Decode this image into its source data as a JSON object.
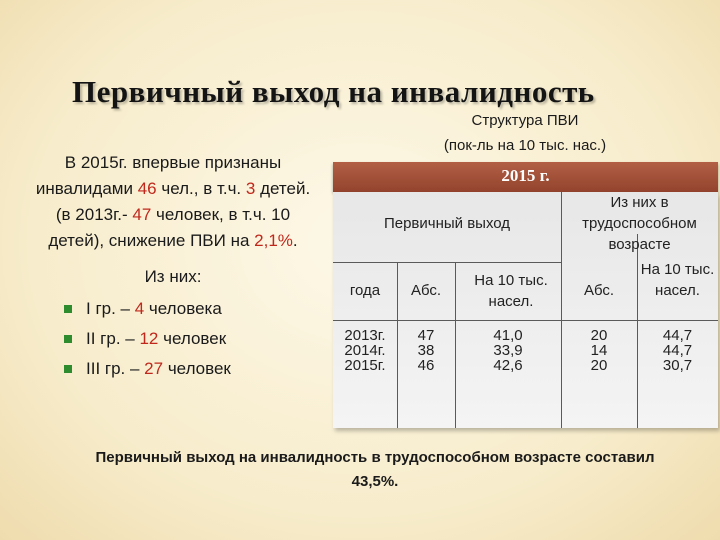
{
  "title": "Первичный выход  на инвалидность",
  "structure": {
    "line1": "Структура ПВИ",
    "line2": "(пок-ль на 10 тыс. нас.)"
  },
  "left": {
    "p1_a": "В 2015г. впервые признаны инвалидами ",
    "p1_n1": "46",
    "p1_b": " чел., в т.ч. ",
    "p1_n2": "3",
    "p1_c": " детей. (в 2013г.- ",
    "p1_n3": "47",
    "p1_d": " человек, в т.ч. 10 детей), снижение ПВИ на ",
    "p1_n4": "2,1%",
    "p1_e": ".",
    "sub": "Из них:",
    "bullets": [
      {
        "a": "I гр. – ",
        "n": "4",
        "b": " человека"
      },
      {
        "a": "II гр. – ",
        "n": "12",
        "b": " человек"
      },
      {
        "a": "III гр. – ",
        "n": "27",
        "b": " человек"
      }
    ]
  },
  "table": {
    "year_header": "2015 г.",
    "primary_header": "Первичный выход",
    "working_header": "Из них в трудоспособном возрасте",
    "col_year": "года",
    "col_abs": "Абс.",
    "col_per10": "На 10 тыс. насел.",
    "col_abs2": "Абс.",
    "col_per10_2": "На 10 тыс. насел.",
    "years": "2013г.\n2014г.\n2015г.",
    "abs": "47\n38\n46",
    "per10": "41,0\n33,9\n42,6",
    "abs2": "20\n14\n20",
    "per10_2": "44,7\n44,7\n30,7"
  },
  "footer": "Первичный выход на инвалидность в трудоспособном возрасте составил 43,5%.",
  "colors": {
    "accent_red": "#c0281c",
    "bar": "#a04f37",
    "bullet": "#2e8b2e"
  }
}
